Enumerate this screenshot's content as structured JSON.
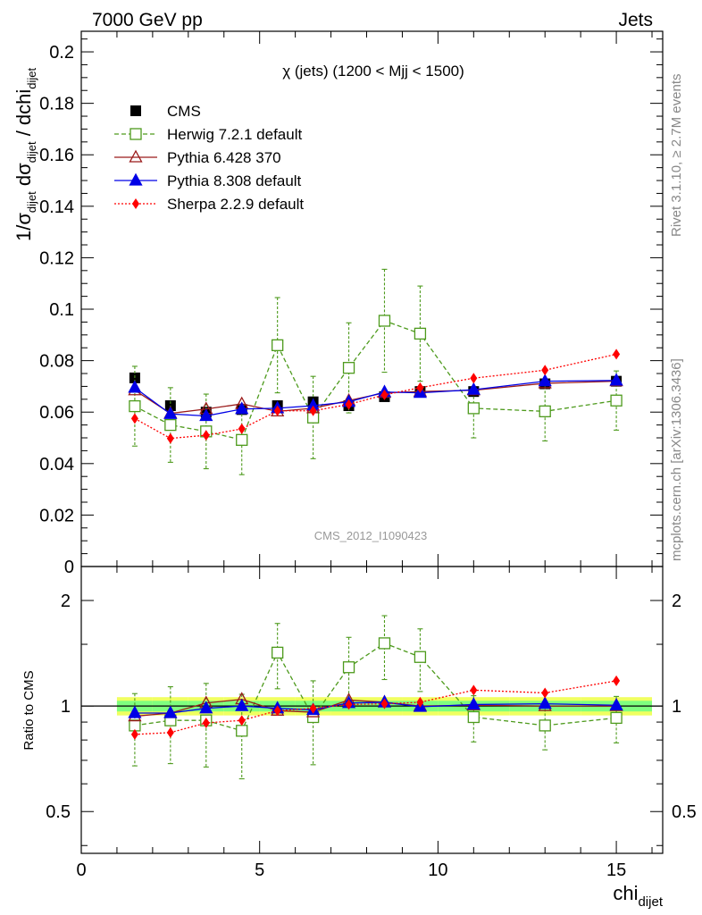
{
  "header": {
    "left": "7000 GeV pp",
    "right": "Jets",
    "side_label_top": "Rivet 3.1.10, ≥ 2.7M events",
    "side_label_bottom": "mcplots.cern.ch [arXiv:1306.3436]"
  },
  "chart_data": [
    {
      "type": "scatter",
      "panel": "main",
      "title": "χ (jets) (1200 < Mjj < 1500)",
      "watermark": "CMS_2012_I1090423",
      "xlabel": "chi_dijet",
      "ylabel": "1/σ_dijet dσ_dijet / dchi_dijet",
      "xlim": [
        0,
        16.3
      ],
      "ylim": [
        0,
        0.208
      ],
      "x_ticks": [
        "0",
        "5",
        "10",
        "15"
      ],
      "y_ticks": [
        "0",
        "0.02",
        "0.04",
        "0.06",
        "0.08",
        "0.1",
        "0.12",
        "0.14",
        "0.16",
        "0.18",
        "0.2"
      ],
      "legend_position": "top-left",
      "x": [
        1.5,
        2.5,
        3.5,
        4.5,
        5.5,
        6.5,
        7.5,
        8.5,
        9.5,
        11,
        13,
        15
      ],
      "x_bin_edges": [
        1,
        2,
        3,
        4,
        5,
        6,
        7,
        8,
        9,
        10,
        12,
        14,
        16
      ],
      "series": [
        {
          "name": "CMS",
          "color": "#000000",
          "marker": "filled-square",
          "line": "none",
          "values": [
            0.0733,
            0.0625,
            0.06,
            0.061,
            0.0625,
            0.064,
            0.0625,
            0.066,
            0.068,
            0.068,
            0.071,
            0.072
          ]
        },
        {
          "name": "Herwig 7.2.1 default",
          "color": "#4d9a1c",
          "marker": "open-square",
          "line": "dashed",
          "values": [
            0.0623,
            0.055,
            0.0525,
            0.0492,
            0.086,
            0.0579,
            0.0772,
            0.0955,
            0.0905,
            0.0615,
            0.0603,
            0.0645
          ],
          "errors": [
            0.0155,
            0.0145,
            0.0145,
            0.0135,
            0.0185,
            0.016,
            0.0175,
            0.02,
            0.0185,
            0.0115,
            0.0115,
            0.0115
          ]
        },
        {
          "name": "Pythia 6.428 370",
          "color": "#9a1a1a",
          "marker": "open-triangle",
          "line": "solid",
          "values": [
            0.0685,
            0.0595,
            0.0612,
            0.0632,
            0.0603,
            0.0615,
            0.0645,
            0.0675,
            0.068,
            0.0685,
            0.0712,
            0.072
          ]
        },
        {
          "name": "Pythia 8.308 default",
          "color": "#0000e6",
          "marker": "filled-triangle",
          "line": "solid",
          "values": [
            0.0695,
            0.0593,
            0.0585,
            0.0612,
            0.0615,
            0.0625,
            0.064,
            0.0678,
            0.0675,
            0.0687,
            0.072,
            0.0723
          ]
        },
        {
          "name": "Sherpa 2.2.9 default",
          "color": "#ff0000",
          "marker": "filled-diamond",
          "line": "dotted",
          "values": [
            0.0575,
            0.0498,
            0.051,
            0.0535,
            0.0605,
            0.0605,
            0.063,
            0.0667,
            0.0695,
            0.0732,
            0.0763,
            0.0825
          ]
        }
      ]
    },
    {
      "type": "scatter",
      "panel": "ratio",
      "ylabel": "Ratio to CMS",
      "yscale": "log",
      "ylim": [
        0.38,
        2.5
      ],
      "y_ticks": [
        "0.5",
        "1",
        "2"
      ],
      "x": [
        1.5,
        2.5,
        3.5,
        4.5,
        5.5,
        6.5,
        7.5,
        8.5,
        9.5,
        11,
        13,
        15
      ],
      "reference_band": {
        "inner_color": "#7fff7f",
        "outer_color": "#f0ff60",
        "inner_halfwidth": 0.035,
        "outer_halfwidth": 0.06
      },
      "series": [
        {
          "name": "Herwig 7.2.1 default",
          "color": "#4d9a1c",
          "marker": "open-square",
          "line": "dashed",
          "values": [
            0.88,
            0.91,
            0.91,
            0.85,
            1.42,
            0.93,
            1.29,
            1.51,
            1.38,
            0.93,
            0.88,
            0.925
          ],
          "errors_low": [
            0.205,
            0.225,
            0.24,
            0.23,
            0.3,
            0.25,
            0.28,
            0.32,
            0.28,
            0.14,
            0.13,
            0.14
          ],
          "errors_high": [
            0.205,
            0.225,
            0.25,
            0.23,
            0.3,
            0.25,
            0.28,
            0.3,
            0.28,
            0.14,
            0.13,
            0.14
          ]
        },
        {
          "name": "Pythia 6.428 370",
          "color": "#9a1a1a",
          "marker": "open-triangle",
          "line": "solid",
          "values": [
            0.935,
            0.955,
            1.02,
            1.045,
            0.97,
            0.96,
            1.04,
            1.025,
            1.0,
            1.005,
            1.0,
            1.0
          ]
        },
        {
          "name": "Pythia 8.308 default",
          "color": "#0000e6",
          "marker": "filled-triangle",
          "line": "solid",
          "values": [
            0.955,
            0.955,
            0.985,
            1.0,
            0.985,
            0.975,
            1.02,
            1.025,
            0.995,
            1.01,
            1.015,
            1.005
          ]
        },
        {
          "name": "Sherpa 2.2.9 default",
          "color": "#ff0000",
          "marker": "filled-diamond",
          "line": "dotted",
          "values": [
            0.83,
            0.84,
            0.895,
            0.91,
            0.97,
            0.985,
            1.01,
            1.015,
            1.025,
            1.11,
            1.09,
            1.18
          ]
        }
      ]
    }
  ]
}
